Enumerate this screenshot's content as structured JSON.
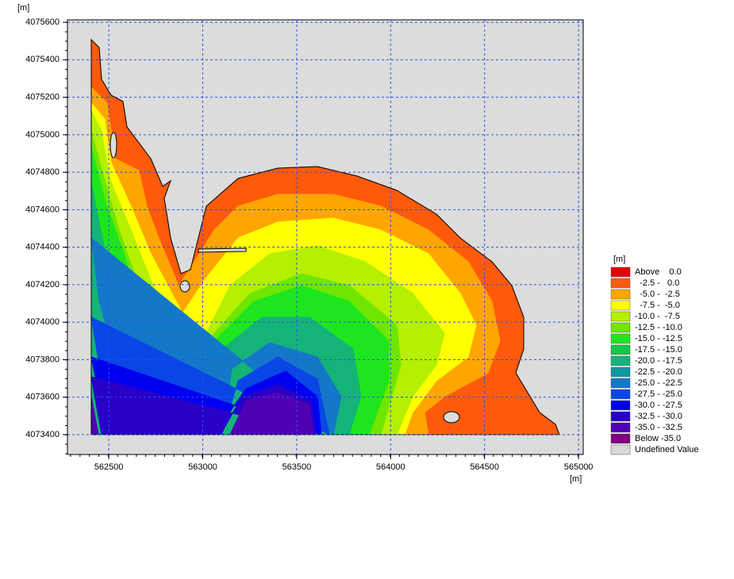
{
  "chart_data": {
    "type": "contour",
    "x_label": "[m]",
    "y_label": "[m]",
    "xlim": [
      562280,
      565025
    ],
    "ylim": [
      4073294,
      4075613
    ],
    "xticks": [
      562500,
      563000,
      563500,
      564000,
      564500,
      565000
    ],
    "yticks": [
      4073400,
      4073600,
      4073800,
      4074000,
      4074200,
      4074400,
      4074600,
      4074800,
      4075000,
      4075200,
      4075400,
      4075600
    ],
    "grid": true,
    "background_color": "#dcdcdc",
    "legend": {
      "title": "[m]",
      "items": [
        {
          "label": "Above    0.0",
          "color": "#e60000"
        },
        {
          "label": "  -2.5 -   0.0",
          "color": "#ff5a0a"
        },
        {
          "label": "  -5.0 -  -2.5",
          "color": "#ffa500"
        },
        {
          "label": "  -7.5 -  -5.0",
          "color": "#ffff00"
        },
        {
          "label": "-10.0 -  -7.5",
          "color": "#b4f000"
        },
        {
          "label": "-12.5 - -10.0",
          "color": "#6ee600"
        },
        {
          "label": "-15.0 - -12.5",
          "color": "#1ee61e"
        },
        {
          "label": "-17.5 - -15.0",
          "color": "#14c846"
        },
        {
          "label": "-20.0 - -17.5",
          "color": "#14b478"
        },
        {
          "label": "-22.5 - -20.0",
          "color": "#1496a0"
        },
        {
          "label": "-25.0 - -22.5",
          "color": "#1478c8"
        },
        {
          "label": "-27.5 - -25.0",
          "color": "#0a46e6"
        },
        {
          "label": "-30.0 - -27.5",
          "color": "#0000f0"
        },
        {
          "label": "-32.5 - -30.0",
          "color": "#2800c8"
        },
        {
          "label": "-35.0 - -32.5",
          "color": "#5000b4"
        },
        {
          "label": "Below -35.0",
          "color": "#800080"
        },
        {
          "label": "Undefined Value",
          "color": "#d9d9d9"
        }
      ]
    }
  }
}
